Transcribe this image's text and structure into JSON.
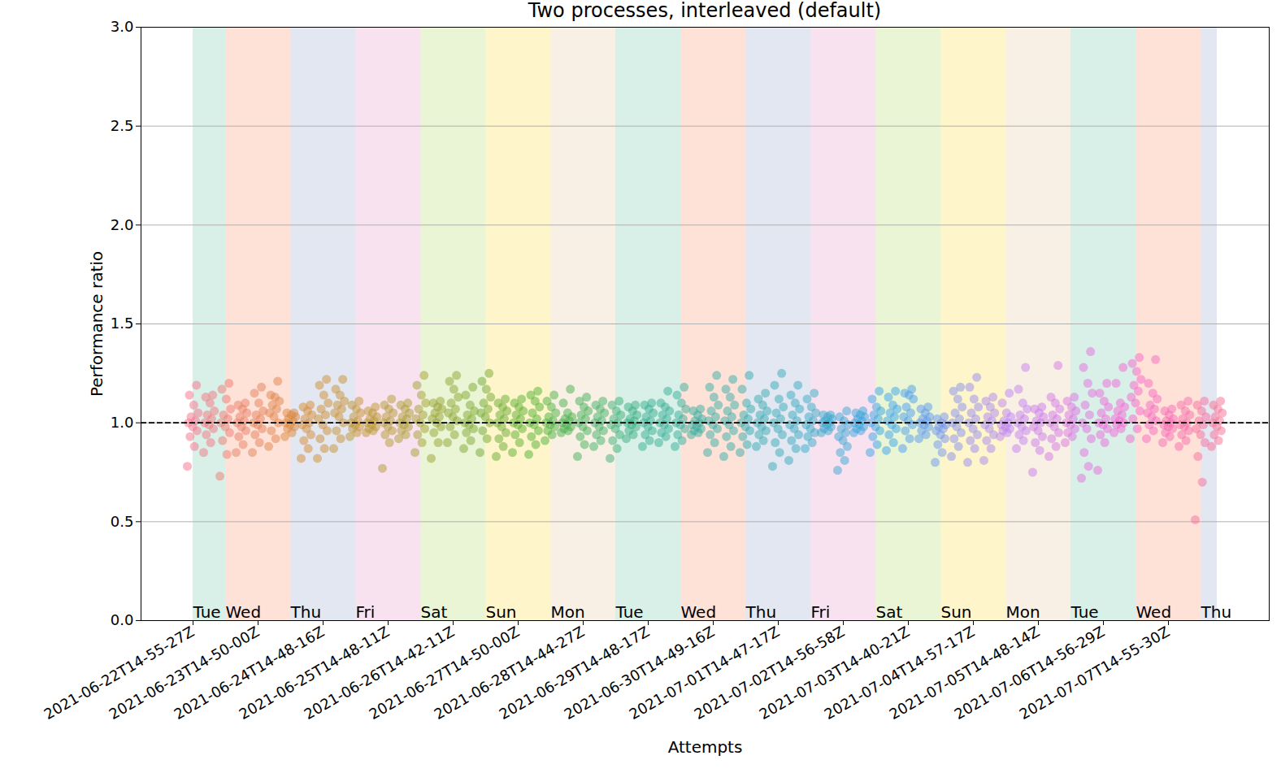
{
  "chart_data": {
    "type": "scatter",
    "title": "Two processes, interleaved (default)",
    "x_label": "Attempts",
    "y_label": "Performance ratio",
    "categories": [
      "2021-06-22T14-55-27Z",
      null,
      null,
      null,
      "2021-06-23T14-50-00Z",
      null,
      null,
      null,
      "2021-06-24T14-48-16Z",
      null,
      null,
      null,
      "2021-06-25T14-48-11Z",
      null,
      null,
      null,
      "2021-06-26T14-42-11Z",
      null,
      null,
      null,
      "2021-06-27T14-50-00Z",
      null,
      null,
      null,
      "2021-06-28T14-44-27Z",
      null,
      null,
      null,
      "2021-06-29T14-48-17Z",
      null,
      null,
      null,
      "2021-06-30T14-49-16Z",
      null,
      null,
      null,
      "2021-07-01T14-47-17Z",
      null,
      null,
      null,
      "2021-07-02T14-56-58Z",
      null,
      null,
      null,
      "2021-07-03T14-40-21Z",
      null,
      null,
      null,
      "2021-07-04T14-57-17Z",
      null,
      null,
      null,
      "2021-07-05T14-48-14Z",
      null,
      null,
      null,
      "2021-07-06T14-56-29Z",
      null,
      null,
      null,
      "2021-07-07T14-55-30Z",
      null,
      null,
      null
    ],
    "values": [
      [
        0.78,
        0.88,
        0.93,
        0.96,
        0.98,
        1.0,
        1.01,
        1.03,
        1.05,
        1.09,
        1.14,
        1.19
      ],
      [
        0.85,
        0.9,
        0.94,
        0.97,
        0.99,
        1.0,
        1.02,
        1.04,
        1.06,
        1.1,
        1.13,
        1.14
      ],
      [
        0.73,
        0.84,
        0.91,
        0.95,
        0.98,
        1.0,
        1.02,
        1.04,
        1.07,
        1.12,
        1.17,
        1.2
      ],
      [
        0.85,
        0.89,
        0.93,
        0.96,
        0.98,
        1.0,
        1.01,
        1.03,
        1.05,
        1.07,
        1.09,
        1.1
      ],
      [
        0.85,
        0.9,
        0.94,
        0.97,
        0.99,
        1.0,
        1.02,
        1.04,
        1.06,
        1.1,
        1.15,
        1.18
      ],
      [
        0.88,
        0.92,
        0.96,
        1.0,
        1.03,
        1.05,
        1.07,
        1.09,
        1.11,
        1.13,
        1.14,
        1.21
      ],
      [
        0.93,
        0.95,
        0.97,
        0.98,
        0.99,
        1.0,
        1.01,
        1.02,
        1.03,
        1.04,
        1.05,
        1.05
      ],
      [
        0.82,
        0.87,
        0.91,
        0.94,
        0.97,
        0.99,
        1.0,
        1.02,
        1.04,
        1.06,
        1.08,
        1.09
      ],
      [
        0.82,
        0.87,
        0.92,
        0.96,
        0.99,
        1.02,
        1.04,
        1.07,
        1.1,
        1.14,
        1.19,
        1.22
      ],
      [
        0.87,
        0.92,
        0.96,
        1.0,
        1.03,
        1.05,
        1.07,
        1.09,
        1.11,
        1.14,
        1.17,
        1.22
      ],
      [
        0.93,
        0.95,
        0.97,
        0.98,
        0.99,
        1.0,
        1.01,
        1.03,
        1.05,
        1.07,
        1.09,
        1.11
      ],
      [
        0.95,
        0.96,
        0.97,
        0.98,
        0.99,
        1.0,
        1.01,
        1.02,
        1.03,
        1.05,
        1.06,
        1.08
      ],
      [
        0.77,
        0.9,
        0.94,
        0.96,
        0.98,
        1.0,
        1.01,
        1.03,
        1.05,
        1.07,
        1.09,
        1.12
      ],
      [
        0.92,
        0.94,
        0.96,
        0.98,
        0.99,
        1.0,
        1.02,
        1.03,
        1.05,
        1.07,
        1.09,
        1.1
      ],
      [
        0.85,
        0.9,
        0.94,
        0.97,
        1.0,
        1.02,
        1.04,
        1.07,
        1.1,
        1.14,
        1.19,
        1.24
      ],
      [
        0.82,
        0.9,
        0.95,
        0.98,
        1.0,
        1.02,
        1.03,
        1.05,
        1.07,
        1.08,
        1.1,
        1.11
      ],
      [
        0.9,
        0.94,
        0.98,
        1.01,
        1.03,
        1.05,
        1.07,
        1.1,
        1.13,
        1.17,
        1.21,
        1.24
      ],
      [
        0.87,
        0.91,
        0.95,
        0.97,
        0.99,
        1.0,
        1.02,
        1.04,
        1.06,
        1.09,
        1.14,
        1.18
      ],
      [
        0.85,
        0.92,
        0.96,
        1.0,
        1.03,
        1.05,
        1.07,
        1.1,
        1.13,
        1.17,
        1.21,
        1.25
      ],
      [
        0.83,
        0.88,
        0.92,
        0.95,
        0.98,
        1.0,
        1.02,
        1.04,
        1.06,
        1.08,
        1.1,
        1.12
      ],
      [
        0.85,
        0.9,
        0.94,
        0.97,
        0.99,
        1.0,
        1.02,
        1.04,
        1.06,
        1.08,
        1.1,
        1.12
      ],
      [
        0.84,
        0.89,
        0.93,
        0.96,
        0.99,
        1.0,
        1.02,
        1.05,
        1.08,
        1.11,
        1.14,
        1.16
      ],
      [
        0.91,
        0.94,
        0.96,
        0.98,
        0.99,
        1.0,
        1.01,
        1.03,
        1.05,
        1.08,
        1.11,
        1.14
      ],
      [
        0.95,
        0.96,
        0.97,
        0.98,
        0.99,
        1.0,
        1.01,
        1.02,
        1.03,
        1.05,
        1.1,
        1.17
      ],
      [
        0.83,
        0.89,
        0.93,
        0.96,
        0.98,
        1.0,
        1.02,
        1.04,
        1.06,
        1.08,
        1.11,
        1.13
      ],
      [
        0.88,
        0.91,
        0.94,
        0.96,
        0.98,
        1.0,
        1.01,
        1.03,
        1.05,
        1.07,
        1.09,
        1.11
      ],
      [
        0.82,
        0.87,
        0.91,
        0.94,
        0.97,
        0.99,
        1.0,
        1.02,
        1.04,
        1.06,
        1.09,
        1.11
      ],
      [
        0.92,
        0.94,
        0.96,
        0.98,
        0.99,
        1.0,
        1.01,
        1.02,
        1.04,
        1.06,
        1.08,
        1.09
      ],
      [
        0.88,
        0.91,
        0.94,
        0.96,
        0.98,
        1.0,
        1.01,
        1.03,
        1.05,
        1.07,
        1.09,
        1.1
      ],
      [
        0.9,
        0.93,
        0.95,
        0.97,
        0.99,
        1.0,
        1.02,
        1.04,
        1.06,
        1.08,
        1.1,
        1.16
      ],
      [
        0.88,
        0.91,
        0.94,
        0.97,
        0.99,
        1.0,
        1.02,
        1.04,
        1.07,
        1.1,
        1.14,
        1.18
      ],
      [
        0.94,
        0.95,
        0.96,
        0.97,
        0.98,
        0.99,
        1.0,
        1.01,
        1.02,
        1.04,
        1.06,
        1.07
      ],
      [
        0.85,
        0.9,
        0.94,
        0.97,
        0.99,
        1.01,
        1.03,
        1.06,
        1.09,
        1.13,
        1.18,
        1.24
      ],
      [
        0.83,
        0.88,
        0.93,
        0.96,
        0.99,
        1.01,
        1.03,
        1.06,
        1.09,
        1.13,
        1.17,
        1.22
      ],
      [
        0.85,
        0.89,
        0.93,
        0.96,
        0.98,
        1.0,
        1.02,
        1.04,
        1.07,
        1.1,
        1.17,
        1.24
      ],
      [
        0.88,
        0.91,
        0.94,
        0.96,
        0.98,
        1.0,
        1.02,
        1.04,
        1.06,
        1.09,
        1.12,
        1.15
      ],
      [
        0.78,
        0.85,
        0.9,
        0.94,
        0.97,
        1.0,
        1.02,
        1.05,
        1.08,
        1.12,
        1.19,
        1.25
      ],
      [
        0.81,
        0.87,
        0.91,
        0.94,
        0.97,
        0.99,
        1.01,
        1.04,
        1.07,
        1.1,
        1.14,
        1.19
      ],
      [
        0.87,
        0.9,
        0.93,
        0.95,
        0.97,
        0.99,
        1.01,
        1.03,
        1.05,
        1.08,
        1.12,
        1.15
      ],
      [
        0.95,
        0.96,
        0.97,
        0.98,
        0.99,
        1.0,
        1.0,
        1.01,
        1.02,
        1.03,
        1.04,
        1.04
      ],
      [
        0.76,
        0.81,
        0.85,
        0.88,
        0.91,
        0.93,
        0.95,
        0.97,
        0.99,
        1.01,
        1.03,
        1.06
      ],
      [
        0.95,
        0.96,
        0.97,
        0.98,
        0.99,
        1.0,
        1.01,
        1.02,
        1.03,
        1.04,
        1.05,
        1.06
      ],
      [
        0.85,
        0.89,
        0.93,
        0.96,
        0.98,
        1.0,
        1.02,
        1.04,
        1.06,
        1.08,
        1.12,
        1.16
      ],
      [
        0.86,
        0.9,
        0.94,
        0.97,
        0.99,
        1.01,
        1.03,
        1.05,
        1.07,
        1.09,
        1.13,
        1.16
      ],
      [
        0.87,
        0.92,
        0.96,
        0.99,
        1.01,
        1.03,
        1.05,
        1.08,
        1.12,
        1.14,
        1.15,
        1.17
      ],
      [
        0.92,
        0.94,
        0.96,
        0.98,
        0.99,
        1.0,
        1.01,
        1.02,
        1.03,
        1.05,
        1.07,
        1.08
      ],
      [
        0.8,
        0.85,
        0.89,
        0.92,
        0.94,
        0.96,
        0.97,
        0.98,
        0.99,
        1.0,
        1.02,
        1.03
      ],
      [
        0.83,
        0.88,
        0.92,
        0.95,
        0.98,
        1.0,
        1.02,
        1.05,
        1.08,
        1.12,
        1.16,
        1.18
      ],
      [
        0.8,
        0.87,
        0.91,
        0.94,
        0.97,
        1.0,
        1.02,
        1.05,
        1.08,
        1.12,
        1.18,
        1.23
      ],
      [
        0.81,
        0.87,
        0.91,
        0.94,
        0.97,
        0.99,
        1.01,
        1.03,
        1.05,
        1.08,
        1.11,
        1.13
      ],
      [
        0.93,
        0.95,
        0.96,
        0.97,
        0.98,
        0.99,
        1.0,
        1.01,
        1.03,
        1.05,
        1.1,
        1.15
      ],
      [
        0.87,
        0.91,
        0.94,
        0.96,
        0.98,
        1.0,
        1.02,
        1.04,
        1.07,
        1.1,
        1.17,
        1.28
      ],
      [
        0.75,
        0.86,
        0.9,
        0.93,
        0.96,
        0.98,
        1.0,
        1.01,
        1.03,
        1.05,
        1.07,
        1.08
      ],
      [
        0.83,
        0.88,
        0.92,
        0.95,
        0.98,
        1.0,
        1.02,
        1.04,
        1.07,
        1.1,
        1.13,
        1.29
      ],
      [
        0.9,
        0.93,
        0.95,
        0.97,
        0.99,
        1.0,
        1.02,
        1.04,
        1.06,
        1.08,
        1.11,
        1.13
      ],
      [
        0.72,
        0.78,
        0.85,
        0.92,
        0.97,
        1.0,
        1.04,
        1.09,
        1.15,
        1.2,
        1.28,
        1.36
      ],
      [
        0.76,
        0.9,
        0.94,
        0.97,
        0.99,
        1.0,
        1.02,
        1.05,
        1.08,
        1.11,
        1.15,
        1.2
      ],
      [
        0.95,
        0.97,
        0.99,
        1.0,
        1.01,
        1.02,
        1.04,
        1.06,
        1.08,
        1.1,
        1.2,
        1.28
      ],
      [
        0.92,
        0.97,
        1.02,
        1.06,
        1.1,
        1.13,
        1.16,
        1.19,
        1.22,
        1.26,
        1.3,
        1.33
      ],
      [
        0.92,
        0.96,
        0.99,
        1.01,
        1.03,
        1.05,
        1.07,
        1.09,
        1.12,
        1.15,
        1.2,
        1.32
      ],
      [
        0.9,
        0.93,
        0.95,
        0.97,
        0.98,
        0.99,
        1.0,
        1.01,
        1.02,
        1.04,
        1.06,
        1.07
      ],
      [
        0.88,
        0.91,
        0.94,
        0.96,
        0.98,
        0.99,
        1.0,
        1.02,
        1.04,
        1.06,
        1.09,
        1.11
      ],
      [
        0.51,
        0.7,
        0.83,
        0.9,
        0.94,
        0.97,
        0.99,
        1.01,
        1.03,
        1.06,
        1.09,
        1.11
      ],
      [
        0.88,
        0.91,
        0.94,
        0.96,
        0.98,
        1.0,
        1.01,
        1.03,
        1.05,
        1.07,
        1.09,
        1.11
      ]
    ],
    "colors": [
      "#f77189",
      "#f2757d",
      "#ed7970",
      "#e87d64",
      "#e38057",
      "#df844b",
      "#da883e",
      "#d58c32",
      "#ce8f32",
      "#c79232",
      "#c09432",
      "#b99732",
      "#b29a31",
      "#ab9d31",
      "#a4a031",
      "#98a231",
      "#8ca531",
      "#80a731",
      "#74aa31",
      "#68ac31",
      "#5caf31",
      "#50b131",
      "#4cb13f",
      "#48b04c",
      "#44b05a",
      "#40af68",
      "#3caf76",
      "#38ae83",
      "#34ae91",
      "#34ae95",
      "#35ad9a",
      "#35ad9e",
      "#35ada3",
      "#36aca7",
      "#36acac",
      "#37abb0",
      "#37abb5",
      "#38aabd",
      "#38a9c5",
      "#39a8cd",
      "#39a7d4",
      "#3aa5dc",
      "#3aa4e4",
      "#3ba3ec",
      "#4d9eed",
      "#609aee",
      "#7295ef",
      "#8491f0",
      "#968cf1",
      "#a988f3",
      "#bb83f4",
      "#c37fef",
      "#cc7aeb",
      "#d476e6",
      "#dc71e2",
      "#e46ddd",
      "#ed68d9",
      "#f564d4",
      "#f566c9",
      "#f568bf",
      "#f66ab4",
      "#f66ca9",
      "#f66e9e",
      "#f76f94"
    ],
    "bands": [
      {
        "label": "Tue",
        "start": 0,
        "end": 2,
        "color": "#66c2a5"
      },
      {
        "label": "Wed",
        "start": 2,
        "end": 6,
        "color": "#fc8d62"
      },
      {
        "label": "Thu",
        "start": 6,
        "end": 10,
        "color": "#8da0cb"
      },
      {
        "label": "Fri",
        "start": 10,
        "end": 14,
        "color": "#e78ac3"
      },
      {
        "label": "Sat",
        "start": 14,
        "end": 18,
        "color": "#a6d854"
      },
      {
        "label": "Sun",
        "start": 18,
        "end": 22,
        "color": "#ffd92f"
      },
      {
        "label": "Mon",
        "start": 22,
        "end": 26,
        "color": "#e5c494"
      },
      {
        "label": "Tue",
        "start": 26,
        "end": 30,
        "color": "#66c2a5"
      },
      {
        "label": "Wed",
        "start": 30,
        "end": 34,
        "color": "#fc8d62"
      },
      {
        "label": "Thu",
        "start": 34,
        "end": 38,
        "color": "#8da0cb"
      },
      {
        "label": "Fri",
        "start": 38,
        "end": 42,
        "color": "#e78ac3"
      },
      {
        "label": "Sat",
        "start": 42,
        "end": 46,
        "color": "#a6d854"
      },
      {
        "label": "Sun",
        "start": 46,
        "end": 50,
        "color": "#ffd92f"
      },
      {
        "label": "Mon",
        "start": 50,
        "end": 54,
        "color": "#e5c494"
      },
      {
        "label": "Tue",
        "start": 54,
        "end": 58,
        "color": "#66c2a5"
      },
      {
        "label": "Wed",
        "start": 58,
        "end": 62,
        "color": "#fc8d62"
      },
      {
        "label": "Thu",
        "start": 62,
        "end": 63,
        "color": "#8da0cb"
      }
    ],
    "reference_line": {
      "value": 1.0,
      "color": "#000000",
      "line_style": "dashed"
    },
    "ylim": [
      0,
      3
    ],
    "yticks": [
      {
        "value": 0,
        "label": "0.0"
      },
      0.5,
      {
        "value": 1,
        "label": "1.0"
      },
      1.5,
      {
        "value": 2,
        "label": "2.0"
      },
      2.5,
      {
        "value": 3,
        "label": "3.0"
      }
    ],
    "grid": true
  }
}
